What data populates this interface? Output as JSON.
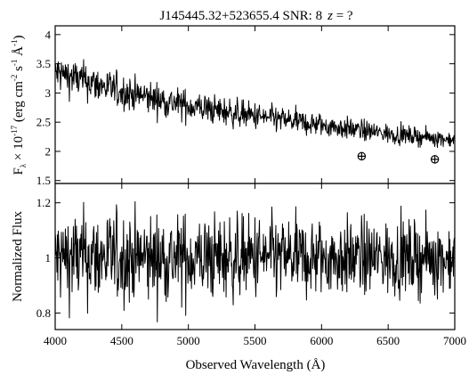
{
  "title": "J145445.32+523655.4 SNR: 8",
  "title_z": "z",
  "title_eq": " = ?",
  "chart_data": [
    {
      "type": "line",
      "panel": "top",
      "ylabel_parts": {
        "f": "F",
        "lambda_sub": "λ",
        "times": " × 10",
        "exp": "-17",
        "unit_open": " (erg cm",
        "u1": "-2",
        "s": " s",
        "u2": "-1",
        "ang": " Å",
        "u3": "-1",
        "close": ")"
      },
      "xlim": [
        4000,
        7000
      ],
      "ylim": [
        1.45,
        4.15
      ],
      "yticks": [
        "1.5",
        "2",
        "2.5",
        "3",
        "3.5",
        "4"
      ],
      "y_tick_values": [
        1.5,
        2.0,
        2.5,
        3.0,
        3.5,
        4.0
      ],
      "trend_anchors": [
        [
          4000,
          3.35
        ],
        [
          4200,
          3.22
        ],
        [
          4500,
          3.02
        ],
        [
          5000,
          2.78
        ],
        [
          5500,
          2.6
        ],
        [
          6000,
          2.45
        ],
        [
          6500,
          2.3
        ],
        [
          7000,
          2.2
        ]
      ],
      "noise": {
        "start": 0.33,
        "end": 0.13
      },
      "telluric_markers": [
        {
          "x": 6300,
          "y": 1.92,
          "symbol": "⊕"
        },
        {
          "x": 6850,
          "y": 1.87,
          "symbol": "⊕"
        }
      ]
    },
    {
      "type": "line",
      "panel": "bottom",
      "ylabel": "Normalized Flux",
      "xlabel": "Observed Wavelength (Å)",
      "xlim": [
        4000,
        7000
      ],
      "ylim": [
        0.74,
        1.27
      ],
      "xticks": [
        "4000",
        "4500",
        "5000",
        "5500",
        "6000",
        "6500",
        "7000"
      ],
      "x_tick_values": [
        4000,
        4500,
        5000,
        5500,
        6000,
        6500,
        7000
      ],
      "yticks": [
        "0.8",
        "1",
        "1.2"
      ],
      "y_tick_values": [
        0.8,
        1.0,
        1.2
      ],
      "level": 1.0,
      "noise": 0.09
    }
  ]
}
